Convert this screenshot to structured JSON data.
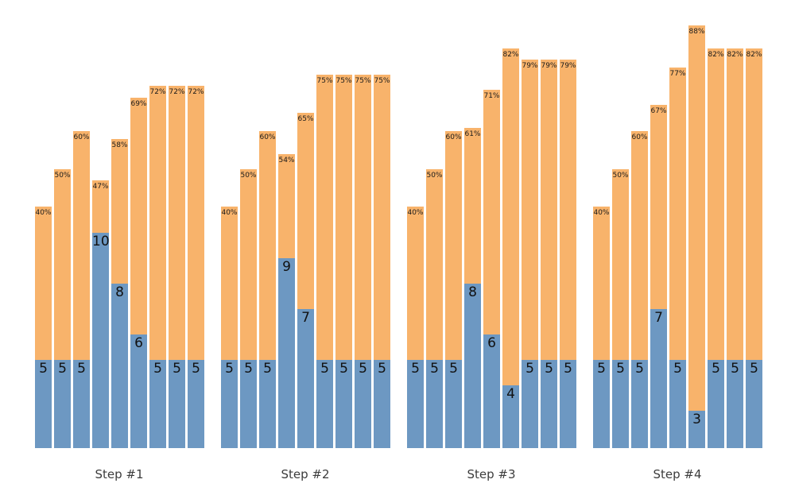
{
  "chart_data": {
    "type": "bar",
    "subtype": "grouped-stacked-columns",
    "title": "",
    "xlabel": "",
    "ylabel": "",
    "categories": [
      "Step #1",
      "Step #2",
      "Step #3",
      "Step #4"
    ],
    "bars_per_group": 9,
    "groups": [
      {
        "label": "Step #1",
        "bars": [
          {
            "value": 5,
            "value_label": "5",
            "pct": 40,
            "pct_label": "40%"
          },
          {
            "value": 5,
            "value_label": "5",
            "pct": 50,
            "pct_label": "50%"
          },
          {
            "value": 5,
            "value_label": "5",
            "pct": 60,
            "pct_label": "60%"
          },
          {
            "value": 10,
            "value_label": "10",
            "pct": 47,
            "pct_label": "47%"
          },
          {
            "value": 8,
            "value_label": "8",
            "pct": 58,
            "pct_label": "58%"
          },
          {
            "value": 6,
            "value_label": "6",
            "pct": 69,
            "pct_label": "69%"
          },
          {
            "value": 5,
            "value_label": "5",
            "pct": 72,
            "pct_label": "72%"
          },
          {
            "value": 5,
            "value_label": "5",
            "pct": 72,
            "pct_label": "72%"
          },
          {
            "value": 5,
            "value_label": "5",
            "pct": 72,
            "pct_label": "72%"
          }
        ]
      },
      {
        "label": "Step #2",
        "bars": [
          {
            "value": 5,
            "value_label": "5",
            "pct": 40,
            "pct_label": "40%"
          },
          {
            "value": 5,
            "value_label": "5",
            "pct": 50,
            "pct_label": "50%"
          },
          {
            "value": 5,
            "value_label": "5",
            "pct": 60,
            "pct_label": "60%"
          },
          {
            "value": 9,
            "value_label": "9",
            "pct": 54,
            "pct_label": "54%"
          },
          {
            "value": 7,
            "value_label": "7",
            "pct": 65,
            "pct_label": "65%"
          },
          {
            "value": 5,
            "value_label": "5",
            "pct": 75,
            "pct_label": "75%"
          },
          {
            "value": 5,
            "value_label": "5",
            "pct": 75,
            "pct_label": "75%"
          },
          {
            "value": 5,
            "value_label": "5",
            "pct": 75,
            "pct_label": "75%"
          },
          {
            "value": 5,
            "value_label": "5",
            "pct": 75,
            "pct_label": "75%"
          }
        ]
      },
      {
        "label": "Step #3",
        "bars": [
          {
            "value": 5,
            "value_label": "5",
            "pct": 40,
            "pct_label": "40%"
          },
          {
            "value": 5,
            "value_label": "5",
            "pct": 50,
            "pct_label": "50%"
          },
          {
            "value": 5,
            "value_label": "5",
            "pct": 60,
            "pct_label": "60%"
          },
          {
            "value": 8,
            "value_label": "8",
            "pct": 61,
            "pct_label": "61%"
          },
          {
            "value": 6,
            "value_label": "6",
            "pct": 71,
            "pct_label": "71%"
          },
          {
            "value": 4,
            "value_label": "4",
            "pct": 82,
            "pct_label": "82%"
          },
          {
            "value": 5,
            "value_label": "5",
            "pct": 79,
            "pct_label": "79%"
          },
          {
            "value": 5,
            "value_label": "5",
            "pct": 79,
            "pct_label": "79%"
          },
          {
            "value": 5,
            "value_label": "5",
            "pct": 79,
            "pct_label": "79%"
          }
        ]
      },
      {
        "label": "Step #4",
        "bars": [
          {
            "value": 5,
            "value_label": "5",
            "pct": 40,
            "pct_label": "40%"
          },
          {
            "value": 5,
            "value_label": "5",
            "pct": 50,
            "pct_label": "50%"
          },
          {
            "value": 5,
            "value_label": "5",
            "pct": 60,
            "pct_label": "60%"
          },
          {
            "value": 7,
            "value_label": "7",
            "pct": 67,
            "pct_label": "67%"
          },
          {
            "value": 5,
            "value_label": "5",
            "pct": 77,
            "pct_label": "77%"
          },
          {
            "value": 3,
            "value_label": "3",
            "pct": 88,
            "pct_label": "88%"
          },
          {
            "value": 5,
            "value_label": "5",
            "pct": 82,
            "pct_label": "82%"
          },
          {
            "value": 5,
            "value_label": "5",
            "pct": 82,
            "pct_label": "82%"
          },
          {
            "value": 5,
            "value_label": "5",
            "pct": 82,
            "pct_label": "82%"
          }
        ]
      }
    ],
    "colors": {
      "value_segment": "#6d98c2",
      "pct_segment": "#f8b36b",
      "value_label_text": "#111111",
      "pct_label_text": "#1a1a1a",
      "category_label_text": "#3c3c3c",
      "background": "#ffffff"
    },
    "layout_hints": {
      "grid": false,
      "legend": false,
      "pct_labels_position": "inside-top-of-orange-segment",
      "value_labels_position": "inside-top-of-blue-segment",
      "category_labels_position": "below-groups",
      "bars_clipped_at_bottom": true
    }
  }
}
